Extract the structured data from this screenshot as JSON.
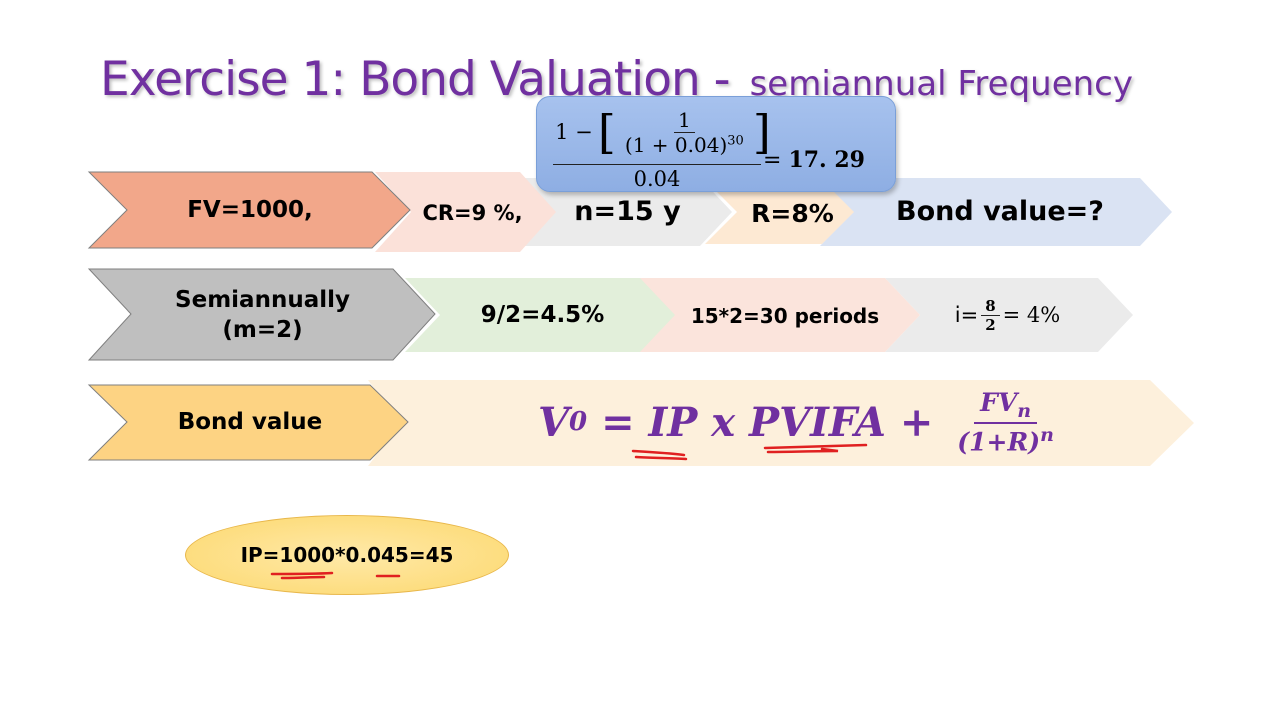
{
  "title": {
    "main": "Exercise 1: Bond Valuation - ",
    "sub": "semiannual Frequency"
  },
  "row1": {
    "fv": "FV=1000,",
    "cr": "CR=9 %,",
    "n": "n=15 y",
    "r": "R=8%",
    "bond_value": "Bond value=?"
  },
  "annuity_box": {
    "one_minus": "1 −",
    "inner_num": "1",
    "inner_den_base": "(1 + 0.04)",
    "inner_den_exp": "30",
    "denominator": "0.04",
    "equals": "= ",
    "result": "17. 29"
  },
  "row2": {
    "semi_line1": "Semiannually",
    "semi_line2": "(m=2)",
    "coupon": "9/2=4.5%",
    "periods": "15*2=30 periods",
    "i_prefix": "i=",
    "i_num": "8",
    "i_den": "2",
    "i_result": "= 4%"
  },
  "row3": {
    "label": "Bond value",
    "formula_left": "V",
    "formula_sub": "0",
    "formula_mid": " = IP x PVIFA + ",
    "frac_num": "FV",
    "frac_num_sub": "n",
    "frac_den": "(1+R)",
    "frac_den_sup": "n"
  },
  "oval": {
    "text": "IP=1000*0.045=45"
  },
  "colors": {
    "title": "#7030a0",
    "fv_chevron": "#f2a78a",
    "cr_chevron": "#fbe1d9",
    "n_chevron": "#e8e8e8",
    "r_chevron": "#fde9d3",
    "bond_chevron": "#dae3f3",
    "semi_chevron": "#bfbfbf",
    "coupon_chevron": "#e2efda",
    "periods_chevron": "#fbe4dc",
    "i_chevron": "#ebebeb",
    "bond_value_chevron": "#fdd383",
    "formula_chevron": "#fdf0dc",
    "annotation_red": "#e02020"
  }
}
